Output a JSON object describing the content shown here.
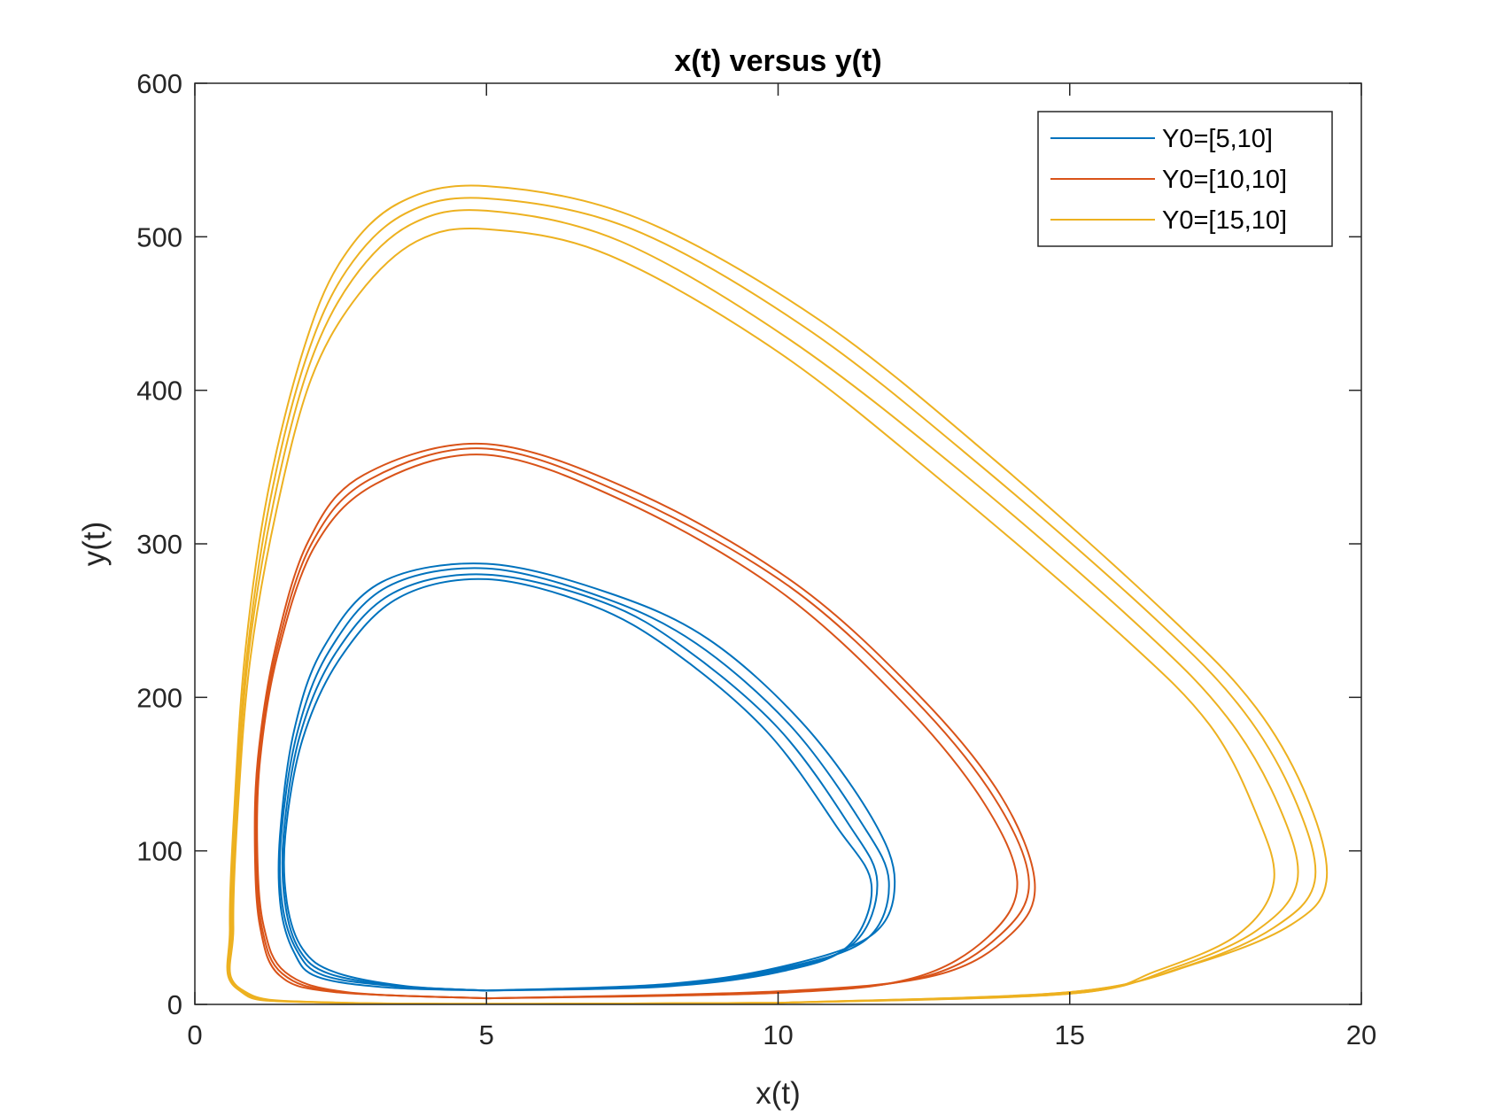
{
  "chart_data": {
    "type": "line",
    "title": "x(t) versus y(t)",
    "xlabel": "x(t)",
    "ylabel": "y(t)",
    "xlim": [
      0,
      20
    ],
    "ylim": [
      0,
      600
    ],
    "xticks": [
      "0",
      "5",
      "10",
      "15",
      "20"
    ],
    "yticks": [
      "0",
      "100",
      "200",
      "300",
      "400",
      "500",
      "600"
    ],
    "grid": false,
    "legend_position": "top-right",
    "series": [
      {
        "name": "Y0=[5,10]",
        "color": "#0072BD",
        "loops": [
          [
            [
              5,
              9
            ],
            [
              8,
              12
            ],
            [
              10,
              22
            ],
            [
              11.3,
              40
            ],
            [
              11.7,
              80
            ],
            [
              11.2,
              118
            ],
            [
              10,
              180
            ],
            [
              8.4,
              232
            ],
            [
              7,
              262
            ],
            [
              5,
              280
            ],
            [
              3.4,
              268
            ],
            [
              2.4,
              228
            ],
            [
              1.8,
              175
            ],
            [
              1.52,
              110
            ],
            [
              1.55,
              65
            ],
            [
              1.8,
              35
            ],
            [
              2.3,
              20
            ],
            [
              3.5,
              12
            ],
            [
              5,
              9
            ]
          ],
          [
            [
              5,
              9
            ],
            [
              8,
              12.5
            ],
            [
              10,
              23
            ],
            [
              11.5,
              42
            ],
            [
              11.9,
              80
            ],
            [
              11.4,
              120
            ],
            [
              10.2,
              182
            ],
            [
              8.6,
              235
            ],
            [
              7,
              265
            ],
            [
              5,
              284
            ],
            [
              3.3,
              272
            ],
            [
              2.3,
              230
            ],
            [
              1.75,
              176
            ],
            [
              1.48,
              110
            ],
            [
              1.5,
              65
            ],
            [
              1.75,
              35
            ],
            [
              2.2,
              19
            ],
            [
              3.4,
              12
            ],
            [
              5,
              9
            ]
          ],
          [
            [
              5,
              9
            ],
            [
              8,
              11.5
            ],
            [
              10,
              21
            ],
            [
              11.2,
              38
            ],
            [
              11.6,
              78
            ],
            [
              11.0,
              116
            ],
            [
              9.8,
              178
            ],
            [
              8.2,
              230
            ],
            [
              6.8,
              260
            ],
            [
              5,
              277
            ],
            [
              3.5,
              265
            ],
            [
              2.5,
              226
            ],
            [
              1.85,
              173
            ],
            [
              1.55,
              110
            ],
            [
              1.58,
              66
            ],
            [
              1.85,
              36
            ],
            [
              2.4,
              21
            ],
            [
              3.6,
              12
            ],
            [
              5,
              9
            ]
          ],
          [
            [
              5,
              9
            ],
            [
              8,
              13
            ],
            [
              10,
              24
            ],
            [
              11.6,
              45
            ],
            [
              12.0,
              80
            ],
            [
              11.6,
              122
            ],
            [
              10.4,
              184
            ],
            [
              8.8,
              238
            ],
            [
              7.1,
              268
            ],
            [
              5,
              287
            ],
            [
              3.2,
              275
            ],
            [
              2.2,
              232
            ],
            [
              1.7,
              178
            ],
            [
              1.46,
              110
            ],
            [
              1.47,
              64
            ],
            [
              1.7,
              34
            ],
            [
              2.1,
              18
            ],
            [
              3.3,
              11
            ],
            [
              5,
              9
            ]
          ]
        ]
      },
      {
        "name": "Y0=[10,10]",
        "color": "#D95319",
        "loops": [
          [
            [
              5,
              4
            ],
            [
              10,
              8
            ],
            [
              12.5,
              18
            ],
            [
              13.8,
              45
            ],
            [
              14.3,
              80
            ],
            [
              13.7,
              135
            ],
            [
              12.3,
              200
            ],
            [
              10.2,
              272
            ],
            [
              7.5,
              330
            ],
            [
              5,
              362
            ],
            [
              3,
              342
            ],
            [
              2,
              300
            ],
            [
              1.4,
              230
            ],
            [
              1.1,
              160
            ],
            [
              1.05,
              100
            ],
            [
              1.15,
              50
            ],
            [
              1.5,
              20
            ],
            [
              2.5,
              8
            ],
            [
              5,
              4
            ]
          ],
          [
            [
              5,
              4
            ],
            [
              10,
              8.5
            ],
            [
              12.7,
              19
            ],
            [
              14,
              46
            ],
            [
              14.4,
              80
            ],
            [
              13.8,
              137
            ],
            [
              12.4,
              202
            ],
            [
              10.3,
              274
            ],
            [
              7.6,
              333
            ],
            [
              5,
              365
            ],
            [
              2.9,
              345
            ],
            [
              1.95,
              302
            ],
            [
              1.38,
              232
            ],
            [
              1.08,
              160
            ],
            [
              1.03,
              100
            ],
            [
              1.12,
              50
            ],
            [
              1.45,
              19
            ],
            [
              2.4,
              8
            ],
            [
              5,
              4
            ]
          ],
          [
            [
              5,
              4
            ],
            [
              10,
              7.5
            ],
            [
              12.3,
              17
            ],
            [
              13.6,
              44
            ],
            [
              14.1,
              80
            ],
            [
              13.5,
              133
            ],
            [
              12.1,
              198
            ],
            [
              10,
              270
            ],
            [
              7.4,
              327
            ],
            [
              5,
              358
            ],
            [
              3.1,
              339
            ],
            [
              2.05,
              298
            ],
            [
              1.42,
              228
            ],
            [
              1.12,
              160
            ],
            [
              1.07,
              100
            ],
            [
              1.18,
              51
            ],
            [
              1.55,
              21
            ],
            [
              2.6,
              8
            ],
            [
              5,
              4
            ]
          ]
        ]
      },
      {
        "name": "Y0=[15,10]",
        "color": "#EDB120",
        "loops": [
          [
            [
              10,
              1
            ],
            [
              15,
              8
            ],
            [
              17,
              25
            ],
            [
              18.5,
              50
            ],
            [
              19.2,
              80
            ],
            [
              18.9,
              130
            ],
            [
              18,
              190
            ],
            [
              16.5,
              250
            ],
            [
              13.5,
              350
            ],
            [
              10.5,
              440
            ],
            [
              7.5,
              505
            ],
            [
              5,
              525
            ],
            [
              3.6,
              515
            ],
            [
              2.6,
              478
            ],
            [
              1.9,
              420
            ],
            [
              1.3,
              330
            ],
            [
              0.9,
              230
            ],
            [
              0.7,
              130
            ],
            [
              0.62,
              50
            ],
            [
              0.75,
              10
            ],
            [
              2.5,
              1
            ],
            [
              10,
              1
            ]
          ],
          [
            [
              10,
              1
            ],
            [
              15,
              8
            ],
            [
              17.2,
              27
            ],
            [
              18.8,
              52
            ],
            [
              19.4,
              80
            ],
            [
              19.1,
              132
            ],
            [
              18.2,
              193
            ],
            [
              16.7,
              253
            ],
            [
              13.7,
              355
            ],
            [
              10.7,
              446
            ],
            [
              7.6,
              512
            ],
            [
              5,
              533
            ],
            [
              3.5,
              522
            ],
            [
              2.5,
              484
            ],
            [
              1.85,
              425
            ],
            [
              1.25,
              333
            ],
            [
              0.87,
              232
            ],
            [
              0.68,
              130
            ],
            [
              0.6,
              50
            ],
            [
              0.73,
              10
            ],
            [
              2.4,
              1
            ],
            [
              10,
              1
            ]
          ],
          [
            [
              10,
              1
            ],
            [
              15,
              7
            ],
            [
              16.8,
              24
            ],
            [
              18.2,
              48
            ],
            [
              18.9,
              80
            ],
            [
              18.6,
              128
            ],
            [
              17.7,
              187
            ],
            [
              16.2,
              246
            ],
            [
              13.2,
              345
            ],
            [
              10.2,
              433
            ],
            [
              7.3,
              497
            ],
            [
              5,
              517
            ],
            [
              3.7,
              508
            ],
            [
              2.7,
              472
            ],
            [
              1.95,
              415
            ],
            [
              1.35,
              327
            ],
            [
              0.92,
              228
            ],
            [
              0.72,
              130
            ],
            [
              0.64,
              50
            ],
            [
              0.77,
              10
            ],
            [
              2.6,
              1
            ],
            [
              10,
              1
            ]
          ],
          [
            [
              10,
              1
            ],
            [
              15,
              7
            ],
            [
              16.5,
              22
            ],
            [
              17.9,
              46
            ],
            [
              18.5,
              80
            ],
            [
              18.2,
              124
            ],
            [
              17.4,
              182
            ],
            [
              15.9,
              240
            ],
            [
              12.9,
              338
            ],
            [
              10,
              425
            ],
            [
              7.1,
              488
            ],
            [
              5,
              505
            ],
            [
              3.8,
              497
            ],
            [
              2.8,
              462
            ],
            [
              2.0,
              408
            ],
            [
              1.4,
              322
            ],
            [
              0.95,
              225
            ],
            [
              0.74,
              128
            ],
            [
              0.66,
              50
            ],
            [
              0.79,
              10
            ],
            [
              2.7,
              1
            ],
            [
              10,
              1
            ]
          ]
        ]
      }
    ]
  }
}
